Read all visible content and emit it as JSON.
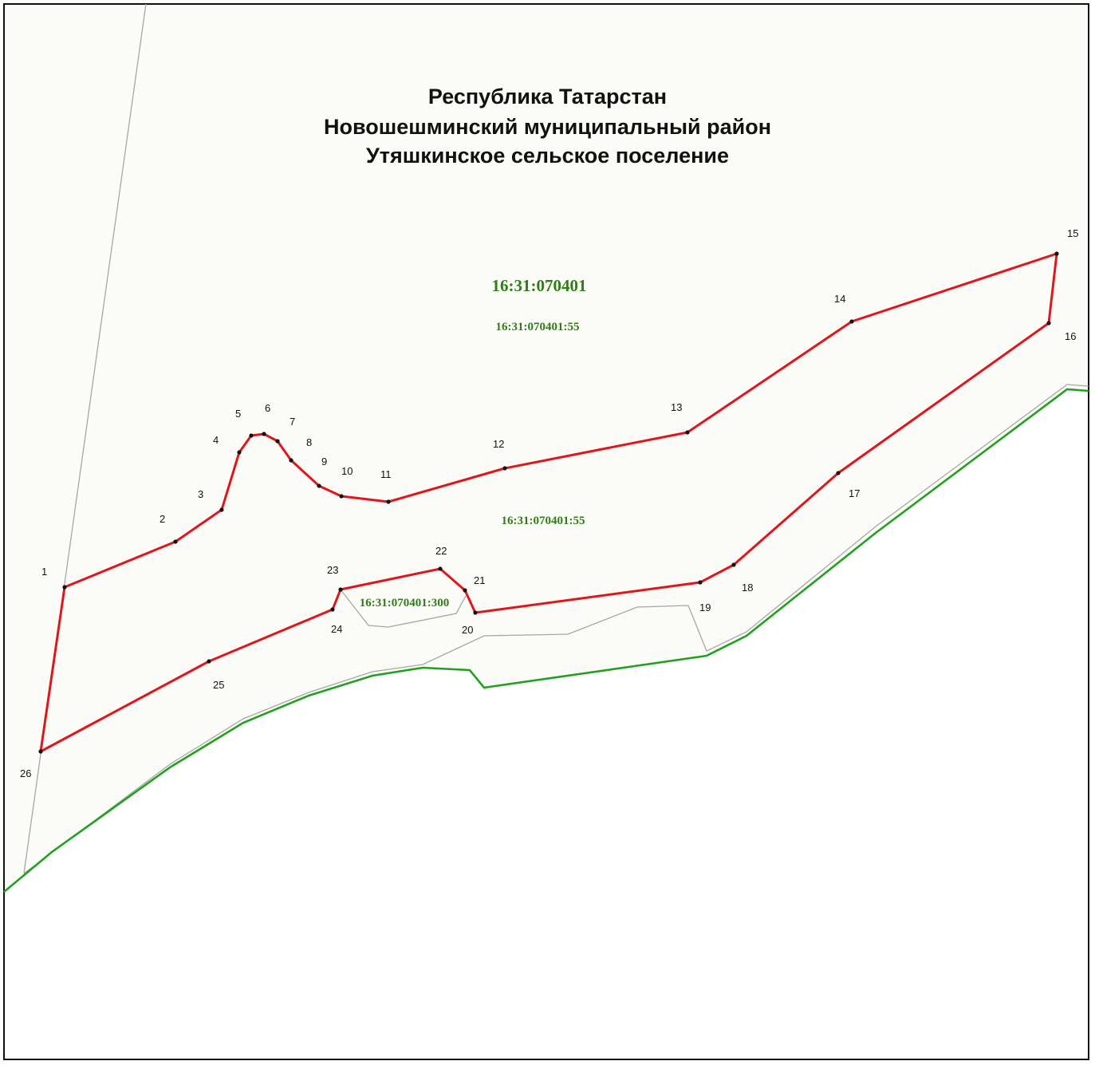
{
  "title": {
    "line1": "Республика Татарстан",
    "line2": "Новошешминский муниципальный район",
    "line3": "Утяшкинское сельское поселение"
  },
  "cadastral_labels": {
    "quarter": "16:31:070401",
    "parcel_top": "16:31:070401:55",
    "parcel_mid": "16:31:070401:55",
    "parcel_inner": "16:31:070401:300"
  },
  "point_labels": [
    "1",
    "2",
    "3",
    "4",
    "5",
    "6",
    "7",
    "8",
    "9",
    "10",
    "11",
    "12",
    "13",
    "14",
    "15",
    "16",
    "17",
    "18",
    "19",
    "20",
    "21",
    "22",
    "23",
    "24",
    "25",
    "26"
  ],
  "colors": {
    "boundary": "#e3141b",
    "river": "#22a020",
    "parcel_line": "#a6a6a6",
    "label_green": "#2f7d16",
    "background_fill": "#fbfcf7"
  }
}
